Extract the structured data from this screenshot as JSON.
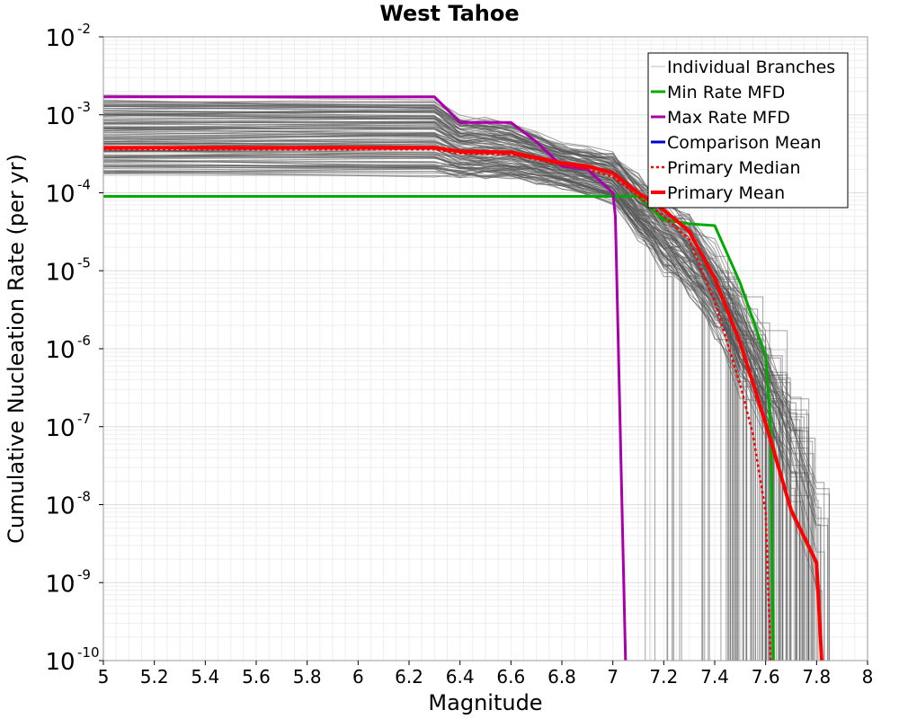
{
  "chart_data": {
    "type": "line",
    "title": "West Tahoe",
    "xlabel": "Magnitude",
    "ylabel": "Cumulative Nucleation Rate (per yr)",
    "xlim": [
      5,
      8
    ],
    "ylim": [
      1e-10,
      0.01
    ],
    "yscale": "log",
    "grid": true,
    "legend_position": "top-right",
    "x_ticks": [
      {
        "value": 5,
        "label": "5"
      },
      {
        "value": 5.2,
        "label": "5.2"
      },
      {
        "value": 5.4,
        "label": "5.4"
      },
      {
        "value": 5.6,
        "label": "5.6"
      },
      {
        "value": 5.8,
        "label": "5.8"
      },
      {
        "value": 6,
        "label": "6"
      },
      {
        "value": 6.2,
        "label": "6.2"
      },
      {
        "value": 6.4,
        "label": "6.4"
      },
      {
        "value": 6.6,
        "label": "6.6"
      },
      {
        "value": 6.8,
        "label": "6.8"
      },
      {
        "value": 7,
        "label": "7"
      },
      {
        "value": 7.2,
        "label": "7.2"
      },
      {
        "value": 7.4,
        "label": "7.4"
      },
      {
        "value": 7.6,
        "label": "7.6"
      },
      {
        "value": 7.8,
        "label": "7.8"
      },
      {
        "value": 8,
        "label": "8"
      }
    ],
    "y_ticks": [
      {
        "exp": -2,
        "base": "10",
        "sup": "-2"
      },
      {
        "exp": -3,
        "base": "10",
        "sup": "-3"
      },
      {
        "exp": -4,
        "base": "10",
        "sup": "-4"
      },
      {
        "exp": -5,
        "base": "10",
        "sup": "-5"
      },
      {
        "exp": -6,
        "base": "10",
        "sup": "-6"
      },
      {
        "exp": -7,
        "base": "10",
        "sup": "-7"
      },
      {
        "exp": -8,
        "base": "10",
        "sup": "-8"
      },
      {
        "exp": -9,
        "base": "10",
        "sup": "-9"
      },
      {
        "exp": -10,
        "base": "10",
        "sup": "-10"
      }
    ],
    "individual_branches": {
      "name": "Individual Branches",
      "color": "#555555",
      "upper_envelope": {
        "x": [
          5,
          6.3,
          6.4,
          6.6,
          6.8,
          7.0,
          7.2,
          7.3,
          7.4,
          7.5,
          7.6,
          7.7,
          7.8
        ],
        "y": [
          0.0016,
          0.0016,
          0.0009,
          0.00075,
          0.0004,
          0.0003,
          0.00012,
          8e-05,
          4e-05,
          1.5e-05,
          5e-06,
          1e-06,
          1e-07
        ]
      },
      "lower_envelope": {
        "x": [
          5,
          6.6,
          6.8,
          6.9,
          7.0,
          7.05,
          7.1,
          7.2,
          7.3
        ],
        "y": [
          0.00012,
          0.00012,
          0.0001,
          8e-05,
          6e-05,
          3e-05,
          1e-06,
          1e-07,
          1e-10
        ]
      },
      "vertical_drops_at": [
        7.12,
        7.19,
        7.25,
        7.35,
        7.44,
        7.52,
        7.62,
        7.72
      ]
    },
    "series": [
      {
        "name": "Min Rate MFD",
        "color": "#00aa00",
        "width": 3,
        "dash": "",
        "x": [
          5,
          7.1,
          7.2,
          7.3,
          7.4,
          7.5,
          7.6,
          7.62,
          7.63
        ],
        "y": [
          9e-05,
          9e-05,
          4.5e-05,
          4e-05,
          3.8e-05,
          7e-06,
          8e-07,
          1e-07,
          1e-10
        ]
      },
      {
        "name": "Max Rate MFD",
        "color": "#aa00aa",
        "width": 3,
        "dash": "",
        "x": [
          5,
          6.3,
          6.4,
          6.6,
          6.7,
          6.8,
          6.9,
          7.0,
          7.01,
          7.05
        ],
        "y": [
          0.0017,
          0.0017,
          0.0008,
          0.0008,
          0.00045,
          0.00022,
          0.0002,
          0.0001,
          5e-05,
          1e-10
        ]
      },
      {
        "name": "Comparison Mean",
        "color": "#0000cc",
        "width": 3,
        "dash": "",
        "x": [
          5,
          6.3,
          6.4,
          6.6,
          6.8,
          6.9,
          7.0,
          7.1,
          7.2,
          7.3,
          7.4,
          7.5,
          7.6,
          7.7,
          7.8,
          7.82
        ],
        "y": [
          0.00038,
          0.00038,
          0.00034,
          0.00033,
          0.00024,
          0.00022,
          0.00018,
          0.0001,
          6e-05,
          3.2e-05,
          8e-06,
          1.2e-06,
          1.1e-07,
          8.5e-09,
          1.8e-09,
          1e-10
        ]
      },
      {
        "name": "Primary Median",
        "color": "#ff0000",
        "width": 2.5,
        "dash": "3,3",
        "x": [
          5,
          6.3,
          6.4,
          6.6,
          6.8,
          6.9,
          7.0,
          7.1,
          7.2,
          7.3,
          7.4,
          7.5,
          7.55,
          7.6,
          7.62
        ],
        "y": [
          0.00036,
          0.00036,
          0.00032,
          0.00031,
          0.00023,
          0.0002,
          0.00016,
          9e-05,
          5e-05,
          2.5e-05,
          4e-06,
          3.5e-07,
          8e-08,
          8e-09,
          1e-10
        ]
      },
      {
        "name": "Primary Mean",
        "color": "#ff0000",
        "width": 4,
        "dash": "",
        "x": [
          5,
          6.3,
          6.4,
          6.6,
          6.8,
          6.9,
          7.0,
          7.1,
          7.2,
          7.3,
          7.4,
          7.5,
          7.6,
          7.7,
          7.8,
          7.82
        ],
        "y": [
          0.00038,
          0.00038,
          0.00034,
          0.00033,
          0.00024,
          0.00022,
          0.00018,
          0.0001,
          6e-05,
          3.2e-05,
          8e-06,
          1.2e-06,
          1.1e-07,
          8.5e-09,
          1.8e-09,
          1e-10
        ]
      }
    ],
    "legend": [
      {
        "label": "Individual Branches",
        "color": "#bbbbbb",
        "width": 1,
        "dash": ""
      },
      {
        "label": "Min Rate MFD",
        "color": "#00aa00",
        "width": 3,
        "dash": ""
      },
      {
        "label": "Max Rate MFD",
        "color": "#aa00aa",
        "width": 3,
        "dash": ""
      },
      {
        "label": "Comparison Mean",
        "color": "#0000cc",
        "width": 3,
        "dash": ""
      },
      {
        "label": " Primary Median",
        "color": "#ff0000",
        "width": 2.5,
        "dash": "3,3"
      },
      {
        "label": "Primary Mean",
        "color": "#ff0000",
        "width": 4,
        "dash": ""
      }
    ]
  }
}
